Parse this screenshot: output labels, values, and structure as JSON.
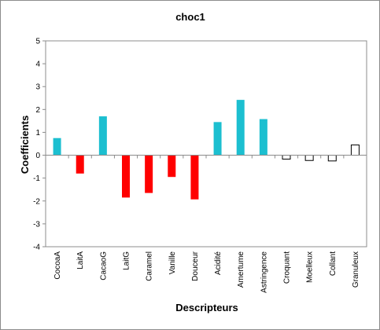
{
  "chart_data": {
    "type": "bar",
    "title": "choc1",
    "xlabel": "Descripteurs",
    "ylabel": "Coefficients",
    "ylim": [
      -4,
      5
    ],
    "yticks": [
      5,
      4,
      3,
      2,
      1,
      0,
      -1,
      -2,
      -3,
      -4
    ],
    "grid": false,
    "legend": "none",
    "categories": [
      "CocoaA",
      "LaitA",
      "CacaoG",
      "LaitG",
      "Caramel",
      "Vanille",
      "Douceur",
      "Acidité",
      "Amertume",
      "Astringence",
      "Croquant",
      "Moelleux",
      "Collant",
      "Granuleux"
    ],
    "values": [
      0.75,
      -0.8,
      1.7,
      -1.85,
      -1.65,
      -0.95,
      -1.93,
      1.45,
      2.42,
      1.58,
      -0.17,
      -0.23,
      -0.25,
      0.45
    ],
    "colors": {
      "positive_significant": "#1cbfd0",
      "negative_significant": "#ff0000",
      "not_significant": "#ffffff",
      "not_significant_border": "#000000"
    },
    "bar_style": [
      "pos",
      "neg",
      "pos",
      "neg",
      "neg",
      "neg",
      "neg",
      "pos",
      "pos",
      "pos",
      "ns",
      "ns",
      "ns",
      "ns"
    ]
  }
}
